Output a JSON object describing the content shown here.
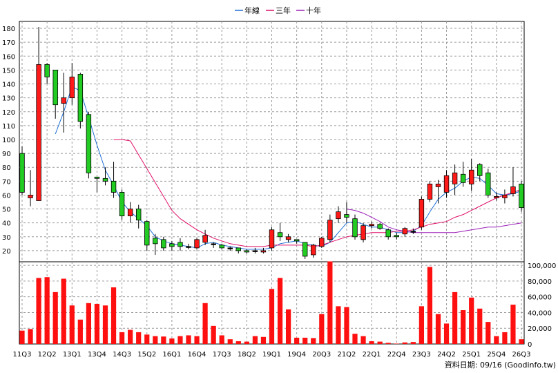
{
  "chart_data": {
    "type": "candlestick",
    "legend": [
      {
        "name": "年線",
        "color": "#1f6fd6"
      },
      {
        "name": "三年",
        "color": "#e0106a"
      },
      {
        "name": "十年",
        "color": "#9b1fb8"
      }
    ],
    "price_axis": {
      "ticks": [
        20,
        30,
        40,
        50,
        60,
        70,
        80,
        90,
        100,
        110,
        120,
        130,
        140,
        150,
        160,
        170,
        180
      ],
      "range": [
        12,
        185
      ]
    },
    "volume_axis": {
      "ticks": [
        "0",
        "20,000",
        "40,000",
        "60,000",
        "80,000",
        "100,000"
      ],
      "values": [
        0,
        20000,
        40000,
        60000,
        80000,
        100000
      ],
      "range": [
        0,
        101000
      ]
    },
    "x_labels": [
      {
        "label": "11Q3",
        "q": 0
      },
      {
        "label": "12Q2",
        "q": 3
      },
      {
        "label": "13Q1",
        "q": 6
      },
      {
        "label": "13Q4",
        "q": 9
      },
      {
        "label": "14Q3",
        "q": 12
      },
      {
        "label": "15Q2",
        "q": 15
      },
      {
        "label": "16Q1",
        "q": 18
      },
      {
        "label": "16Q4",
        "q": 21
      },
      {
        "label": "17Q3",
        "q": 24
      },
      {
        "label": "18Q2",
        "q": 27
      },
      {
        "label": "19Q1",
        "q": 30
      },
      {
        "label": "19Q4",
        "q": 33
      },
      {
        "label": "20Q3",
        "q": 36
      },
      {
        "label": "21Q2",
        "q": 39
      },
      {
        "label": "22Q1",
        "q": 42
      },
      {
        "label": "22Q4",
        "q": 45
      },
      {
        "label": "23Q3",
        "q": 48
      },
      {
        "label": "24Q2",
        "q": 51
      },
      {
        "label": "25Q1",
        "q": 54
      },
      {
        "label": "25Q4",
        "q": 57
      },
      {
        "label": "26Q3",
        "q": 60
      }
    ],
    "quarters": 61,
    "candles": [
      [
        90,
        62,
        95,
        60
      ],
      [
        58,
        60,
        78,
        52
      ],
      [
        56,
        154,
        181,
        56
      ],
      [
        154,
        145,
        155,
        140
      ],
      [
        150,
        125,
        150,
        115
      ],
      [
        126,
        130,
        148,
        105
      ],
      [
        130,
        145,
        155,
        125
      ],
      [
        147,
        113,
        148,
        108
      ],
      [
        118,
        76,
        120,
        72
      ],
      [
        73,
        72,
        73,
        62
      ],
      [
        72,
        70,
        80,
        67
      ],
      [
        70,
        62,
        84,
        58
      ],
      [
        62,
        45,
        64,
        42
      ],
      [
        45,
        50,
        55,
        40
      ],
      [
        50,
        42,
        53,
        36
      ],
      [
        41,
        24,
        42,
        20
      ],
      [
        29,
        25,
        32,
        17
      ],
      [
        28,
        22,
        30,
        20
      ],
      [
        25,
        23,
        27,
        20
      ],
      [
        26,
        23,
        29,
        20
      ],
      [
        23,
        23,
        25,
        21
      ],
      [
        22,
        28,
        29,
        21
      ],
      [
        26,
        31,
        35,
        24
      ],
      [
        25,
        25,
        26,
        22
      ],
      [
        24,
        22,
        25,
        21
      ],
      [
        22,
        22,
        23,
        20
      ],
      [
        22,
        20,
        22,
        18
      ],
      [
        20,
        19,
        21,
        18
      ],
      [
        20,
        20,
        22,
        18
      ],
      [
        19,
        20,
        22,
        18
      ],
      [
        22,
        35,
        37,
        20
      ],
      [
        33,
        30,
        40,
        27
      ],
      [
        28,
        30,
        32,
        26
      ],
      [
        28,
        27,
        28,
        25
      ],
      [
        26,
        16,
        26,
        14
      ],
      [
        17,
        24,
        25,
        15
      ],
      [
        23,
        29,
        30,
        22
      ],
      [
        28,
        42,
        46,
        26
      ],
      [
        43,
        48,
        52,
        40
      ],
      [
        46,
        44,
        55,
        40
      ],
      [
        43,
        30,
        46,
        28
      ],
      [
        28,
        38,
        40,
        26
      ],
      [
        38,
        39,
        41,
        36
      ],
      [
        39,
        36,
        40,
        35
      ],
      [
        35,
        30,
        36,
        28
      ],
      [
        31,
        30,
        33,
        28
      ],
      [
        32,
        36,
        37,
        30
      ],
      [
        34,
        34,
        36,
        32
      ],
      [
        37,
        57,
        59,
        35
      ],
      [
        57,
        68,
        70,
        55
      ],
      [
        66,
        68,
        71,
        54
      ],
      [
        62,
        74,
        78,
        58
      ],
      [
        68,
        76,
        82,
        60
      ],
      [
        75,
        69,
        84,
        66
      ],
      [
        68,
        78,
        86,
        63
      ],
      [
        82,
        74,
        83,
        70
      ],
      [
        76,
        60,
        79,
        58
      ],
      [
        58,
        59,
        62,
        56
      ],
      [
        58,
        60,
        64,
        54
      ],
      [
        61,
        66,
        80,
        59
      ],
      [
        68,
        51,
        70,
        48
      ]
    ],
    "volume": [
      17000,
      19000,
      84000,
      85000,
      66000,
      83000,
      49000,
      31000,
      52000,
      51000,
      49000,
      72000,
      15000,
      18000,
      15000,
      12000,
      10000,
      9500,
      7000,
      10000,
      11000,
      10000,
      52000,
      23000,
      11000,
      6000,
      3500,
      3000,
      10000,
      9000,
      70000,
      84000,
      44000,
      8000,
      8000,
      7500,
      38000,
      105000,
      48000,
      47000,
      13000,
      10000,
      3500,
      3000,
      1500,
      500,
      2000,
      2500,
      48000,
      98000,
      38000,
      26000,
      66000,
      43000,
      59000,
      45000,
      28000,
      10000,
      15000,
      50000,
      6000
    ],
    "ma_year": [
      [
        4,
        104
      ],
      [
        5,
        120
      ],
      [
        6,
        138
      ],
      [
        7,
        135
      ],
      [
        8,
        116
      ],
      [
        9,
        96
      ],
      [
        10,
        78
      ],
      [
        11,
        67
      ],
      [
        12,
        55
      ],
      [
        13,
        48
      ],
      [
        14,
        43
      ],
      [
        15,
        38
      ],
      [
        16,
        30
      ],
      [
        17,
        27
      ],
      [
        18,
        25
      ],
      [
        19,
        24
      ],
      [
        20,
        23
      ],
      [
        21,
        22
      ],
      [
        22,
        25
      ],
      [
        23,
        26
      ],
      [
        24,
        24
      ],
      [
        25,
        23
      ],
      [
        26,
        22
      ],
      [
        27,
        21
      ],
      [
        28,
        21
      ],
      [
        29,
        21
      ],
      [
        30,
        22
      ],
      [
        31,
        25
      ],
      [
        32,
        26
      ],
      [
        33,
        27
      ],
      [
        34,
        25
      ],
      [
        35,
        24
      ],
      [
        36,
        23
      ],
      [
        37,
        26
      ],
      [
        38,
        33
      ],
      [
        39,
        40
      ],
      [
        40,
        41
      ],
      [
        41,
        39
      ],
      [
        42,
        37
      ],
      [
        43,
        37
      ],
      [
        44,
        35
      ],
      [
        45,
        33
      ],
      [
        46,
        33
      ],
      [
        47,
        34
      ],
      [
        48,
        38
      ],
      [
        49,
        48
      ],
      [
        50,
        57
      ],
      [
        51,
        62
      ],
      [
        52,
        65
      ],
      [
        53,
        70
      ],
      [
        54,
        73
      ],
      [
        55,
        72
      ],
      [
        56,
        67
      ],
      [
        57,
        61
      ],
      [
        58,
        60
      ],
      [
        59,
        61
      ],
      [
        60,
        63
      ]
    ],
    "ma_3yr": [
      [
        11,
        100
      ],
      [
        12,
        100
      ],
      [
        13,
        99
      ],
      [
        14,
        89
      ],
      [
        15,
        79
      ],
      [
        16,
        69
      ],
      [
        17,
        59
      ],
      [
        18,
        49
      ],
      [
        19,
        43
      ],
      [
        20,
        39
      ],
      [
        21,
        35
      ],
      [
        22,
        32
      ],
      [
        23,
        29
      ],
      [
        24,
        27
      ],
      [
        25,
        25
      ],
      [
        26,
        24
      ],
      [
        27,
        23
      ],
      [
        28,
        23
      ],
      [
        29,
        23
      ],
      [
        30,
        24
      ],
      [
        31,
        24
      ],
      [
        32,
        24
      ],
      [
        33,
        24
      ],
      [
        34,
        24
      ],
      [
        35,
        23
      ],
      [
        36,
        24
      ],
      [
        37,
        26
      ],
      [
        38,
        28
      ],
      [
        39,
        30
      ],
      [
        40,
        31
      ],
      [
        41,
        32
      ],
      [
        42,
        33
      ],
      [
        43,
        33
      ],
      [
        44,
        33
      ],
      [
        45,
        34
      ],
      [
        46,
        34
      ],
      [
        47,
        35
      ],
      [
        48,
        37
      ],
      [
        49,
        39
      ],
      [
        50,
        40
      ],
      [
        51,
        41
      ],
      [
        52,
        44
      ],
      [
        53,
        46
      ],
      [
        54,
        49
      ],
      [
        55,
        52
      ],
      [
        56,
        55
      ],
      [
        57,
        58
      ],
      [
        58,
        60
      ],
      [
        59,
        62
      ],
      [
        60,
        64
      ]
    ],
    "ma_10yr": [
      [
        39,
        50
      ],
      [
        40,
        49
      ],
      [
        41,
        47
      ],
      [
        42,
        44
      ],
      [
        43,
        41
      ],
      [
        44,
        37
      ],
      [
        45,
        35
      ],
      [
        46,
        34
      ],
      [
        47,
        33
      ],
      [
        48,
        33
      ],
      [
        49,
        33
      ],
      [
        50,
        33
      ],
      [
        51,
        33
      ],
      [
        52,
        33
      ],
      [
        53,
        34
      ],
      [
        54,
        35
      ],
      [
        55,
        36
      ],
      [
        56,
        37
      ],
      [
        57,
        37
      ],
      [
        58,
        38
      ],
      [
        59,
        39
      ],
      [
        60,
        40
      ]
    ],
    "footer": "資料日期: 09/16 (Goodinfo.tw)"
  }
}
